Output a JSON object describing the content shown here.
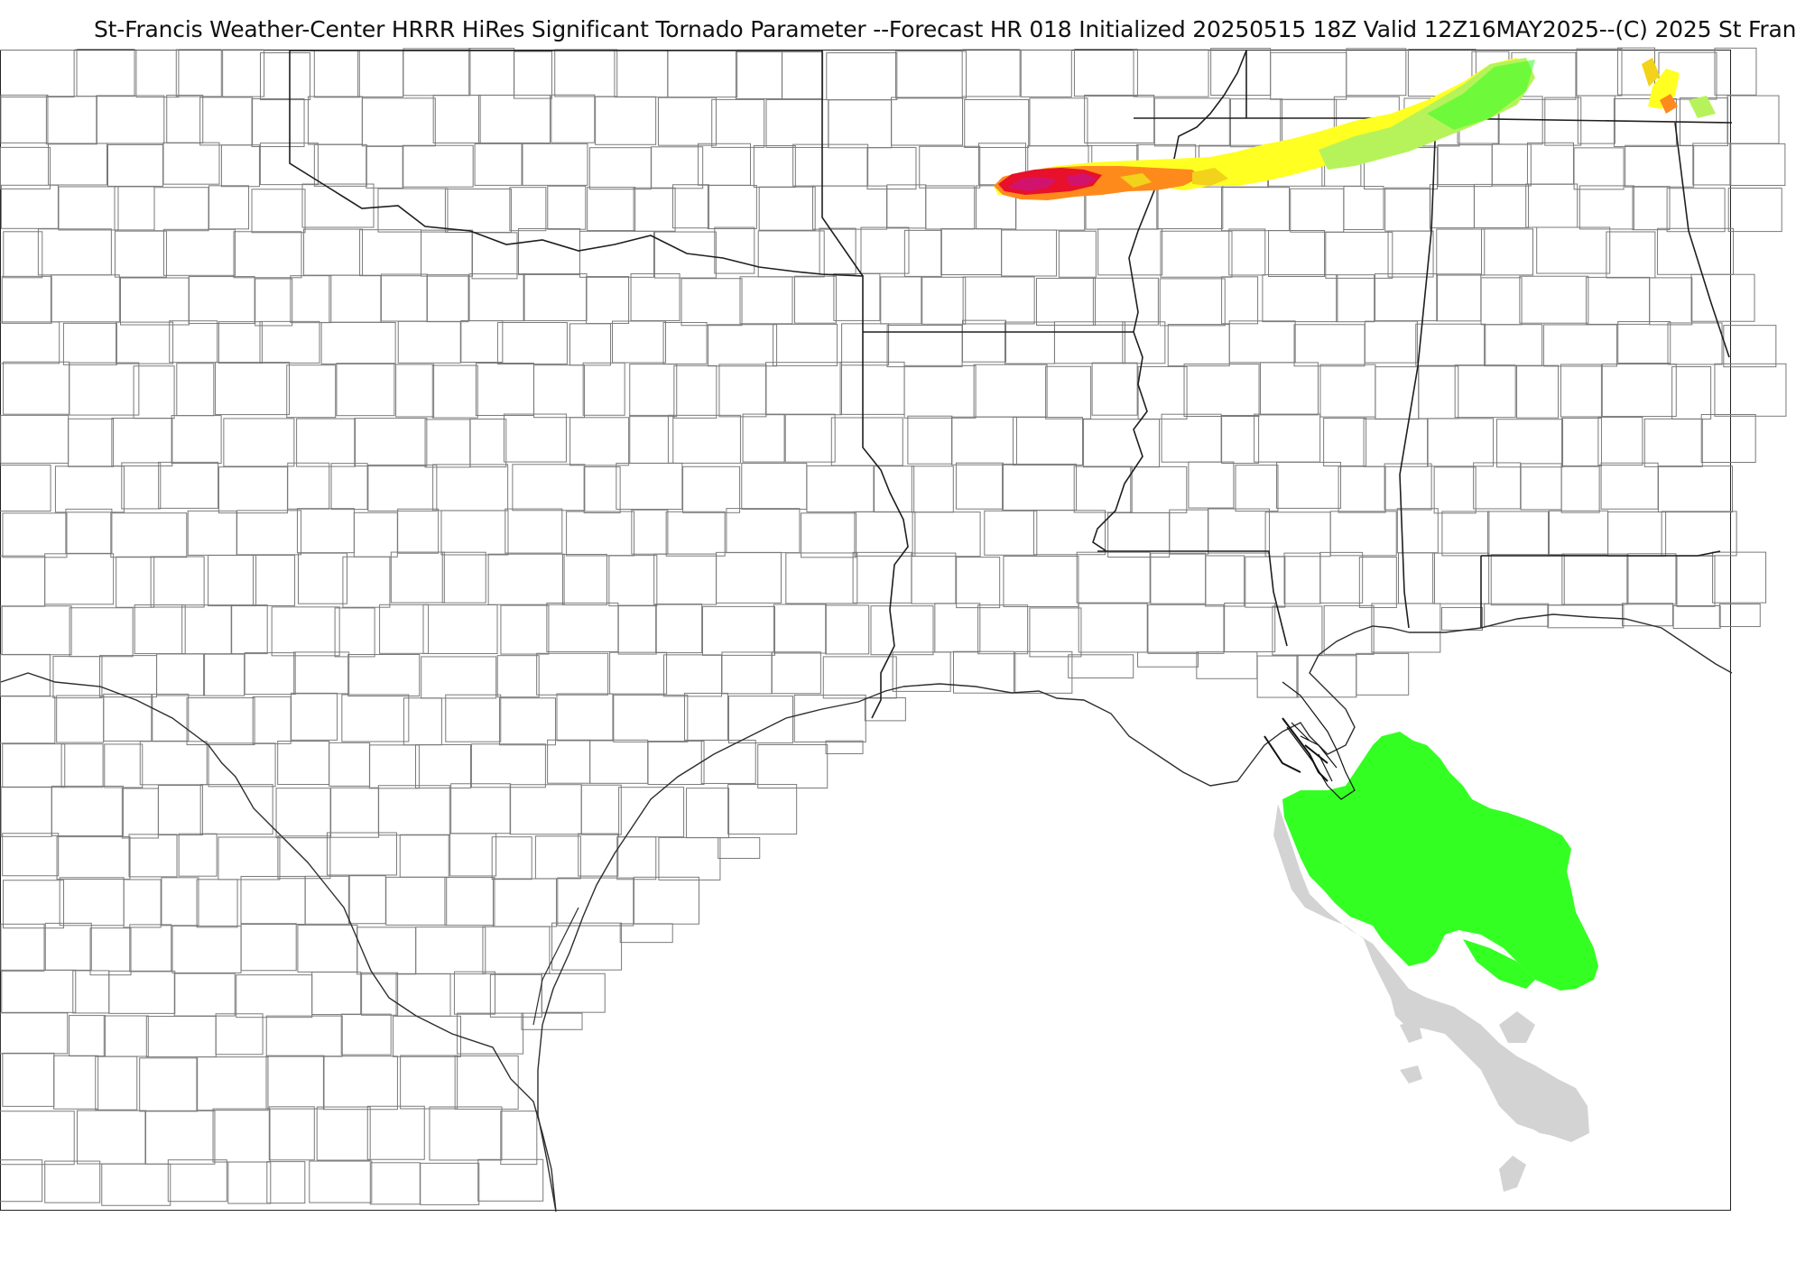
{
  "header": {
    "title": "St-Francis Weather-Center HRRR HiRes Significant Tornado Parameter --Forecast HR 018 Initialized 20250515 18Z Valid 12Z16MAY2025--(C) 2025 St Fran"
  },
  "colors": {
    "background": "#ffffff",
    "county_lines": "#777777",
    "state_lines": "#222222",
    "coastline": "#333333",
    "stp_low_gray": "#d3d3d3",
    "stp_green": "#33ff22",
    "stp_lightgreen": "#b6f35a",
    "stp_yellow": "#ffff22",
    "stp_gold": "#f2d21a",
    "stp_orange": "#ff8a1c",
    "stp_red": "#e8102a",
    "stp_magenta": "#d2136e"
  }
}
